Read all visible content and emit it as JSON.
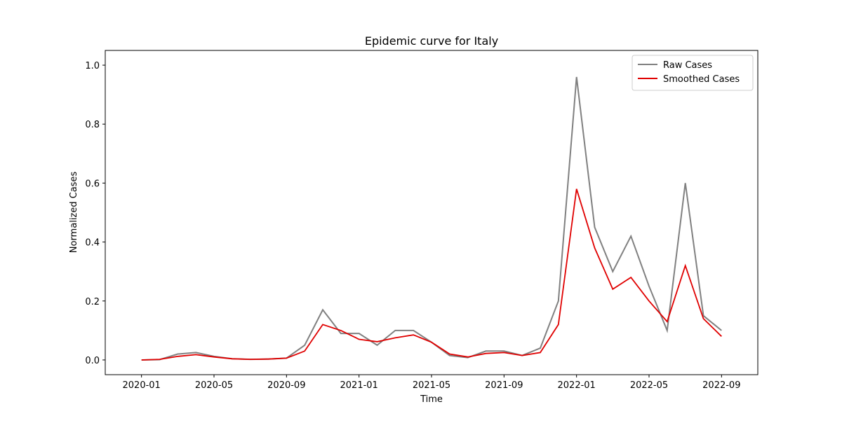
{
  "chart_data": {
    "type": "line",
    "title": "Epidemic curve for Italy",
    "x_label": "Time",
    "y_label": "Normalized Cases",
    "x": [
      "2020-01",
      "2020-02",
      "2020-03",
      "2020-04",
      "2020-05",
      "2020-06",
      "2020-07",
      "2020-08",
      "2020-09",
      "2020-10",
      "2020-11",
      "2020-12",
      "2021-01",
      "2021-02",
      "2021-03",
      "2021-04",
      "2021-05",
      "2021-06",
      "2021-07",
      "2021-08",
      "2021-09",
      "2021-10",
      "2021-11",
      "2021-12",
      "2022-01",
      "2022-02",
      "2022-03",
      "2022-04",
      "2022-05",
      "2022-06",
      "2022-07",
      "2022-08",
      "2022-09"
    ],
    "series": [
      {
        "name": "Raw Cases",
        "color": "#808080",
        "values": [
          0,
          0.001,
          0.02,
          0.025,
          0.012,
          0.004,
          0.002,
          0.003,
          0.006,
          0.05,
          0.17,
          0.09,
          0.09,
          0.05,
          0.1,
          0.1,
          0.06,
          0.015,
          0.008,
          0.03,
          0.03,
          0.015,
          0.04,
          0.2,
          0.96,
          0.45,
          0.3,
          0.42,
          0.25,
          0.1,
          0.6,
          0.15,
          0.1
        ]
      },
      {
        "name": "Smoothed Cases",
        "color": "#e00000",
        "values": [
          0,
          0.002,
          0.012,
          0.018,
          0.01,
          0.004,
          0.002,
          0.003,
          0.006,
          0.03,
          0.12,
          0.1,
          0.07,
          0.062,
          0.075,
          0.085,
          0.06,
          0.02,
          0.01,
          0.022,
          0.025,
          0.015,
          0.025,
          0.12,
          0.58,
          0.38,
          0.24,
          0.28,
          0.2,
          0.13,
          0.32,
          0.14,
          0.08
        ]
      }
    ],
    "xlim": [
      "2019-11",
      "2022-11"
    ],
    "xticks": [
      "2020-01",
      "2020-05",
      "2020-09",
      "2021-01",
      "2021-05",
      "2021-09",
      "2022-01",
      "2022-05",
      "2022-09"
    ],
    "ylim": [
      -0.05,
      1.05
    ],
    "yticks": [
      {
        "value": 0,
        "label": "0.0"
      },
      0.2,
      0.4,
      0.6,
      0.8,
      {
        "value": 1,
        "label": "1.0"
      }
    ],
    "legend": "upper right",
    "grid": false
  }
}
